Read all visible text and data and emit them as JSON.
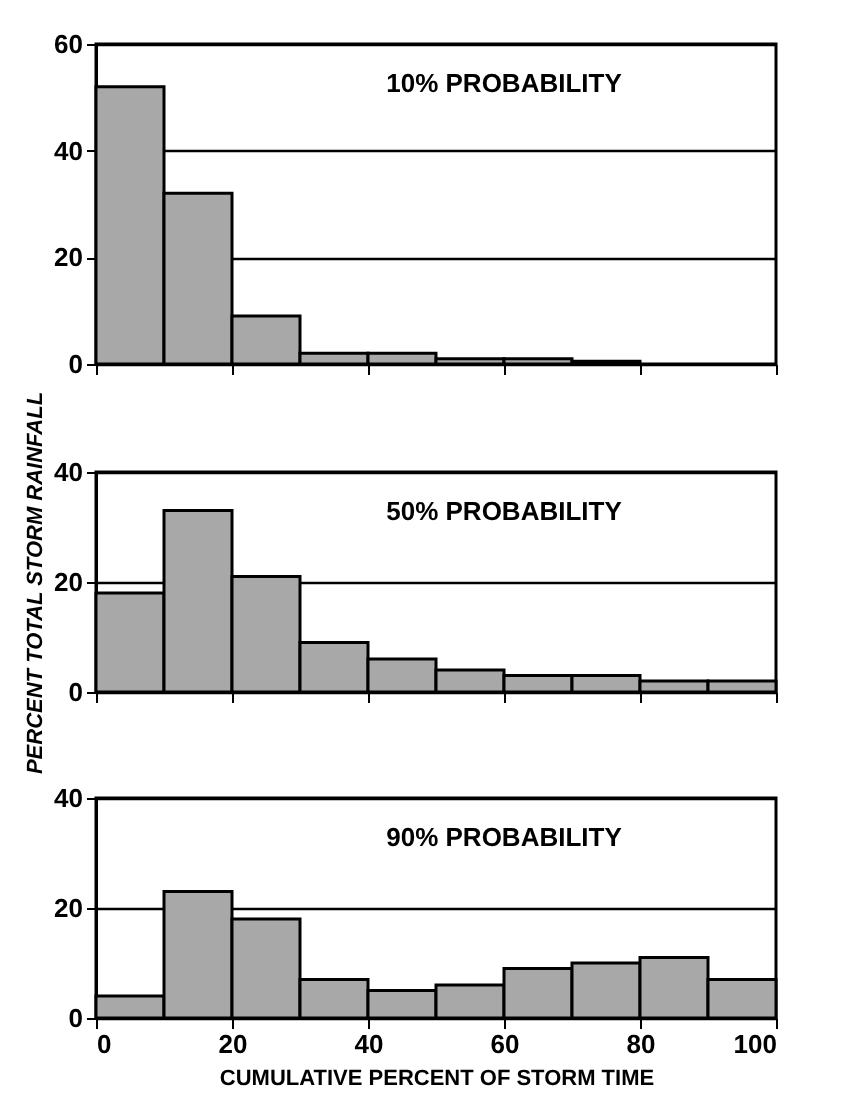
{
  "chart_data": [
    {
      "type": "histogram",
      "annotations": [
        "10% PROBABILITY"
      ],
      "bins": [
        0,
        10,
        20,
        30,
        40,
        50,
        60,
        70,
        80,
        90,
        100
      ],
      "values": [
        52,
        32,
        9,
        2,
        2,
        1,
        1,
        0.5,
        null,
        null
      ],
      "color": "#a8a8a8",
      "xlim": [
        0,
        100
      ],
      "xticks": [
        0,
        20,
        40,
        60,
        80,
        100
      ],
      "ylim": [
        0,
        60
      ],
      "yticks": [
        0,
        20,
        40,
        60
      ],
      "grid": "y",
      "tick_labels": "y"
    },
    {
      "type": "histogram",
      "annotations": [
        "50% PROBABILITY"
      ],
      "ylabel": "PERCENT TOTAL STORM RAINFALL",
      "bins": [
        0,
        10,
        20,
        30,
        40,
        50,
        60,
        70,
        80,
        90,
        100
      ],
      "values": [
        18,
        33,
        21,
        9,
        6,
        4,
        3,
        3,
        2,
        2
      ],
      "color": "#a8a8a8",
      "xlim": [
        0,
        100
      ],
      "xticks": [
        0,
        20,
        40,
        60,
        80,
        100
      ],
      "ylim": [
        0,
        40
      ],
      "yticks": [
        0,
        20,
        40
      ],
      "grid": "y",
      "tick_labels": "y"
    },
    {
      "type": "histogram",
      "annotations": [
        "90% PROBABILITY"
      ],
      "xlabel": "CUMULATIVE PERCENT OF STORM TIME",
      "bins": [
        0,
        10,
        20,
        30,
        40,
        50,
        60,
        70,
        80,
        90,
        100
      ],
      "values": [
        4,
        23,
        18,
        7,
        5,
        6,
        9,
        10,
        11,
        7
      ],
      "color": "#a8a8a8",
      "xlim": [
        0,
        100
      ],
      "xticks": [
        0,
        20,
        40,
        60,
        80,
        100
      ],
      "ylim": [
        0,
        40
      ],
      "yticks": [
        0,
        20,
        40
      ],
      "grid": "y"
    }
  ]
}
